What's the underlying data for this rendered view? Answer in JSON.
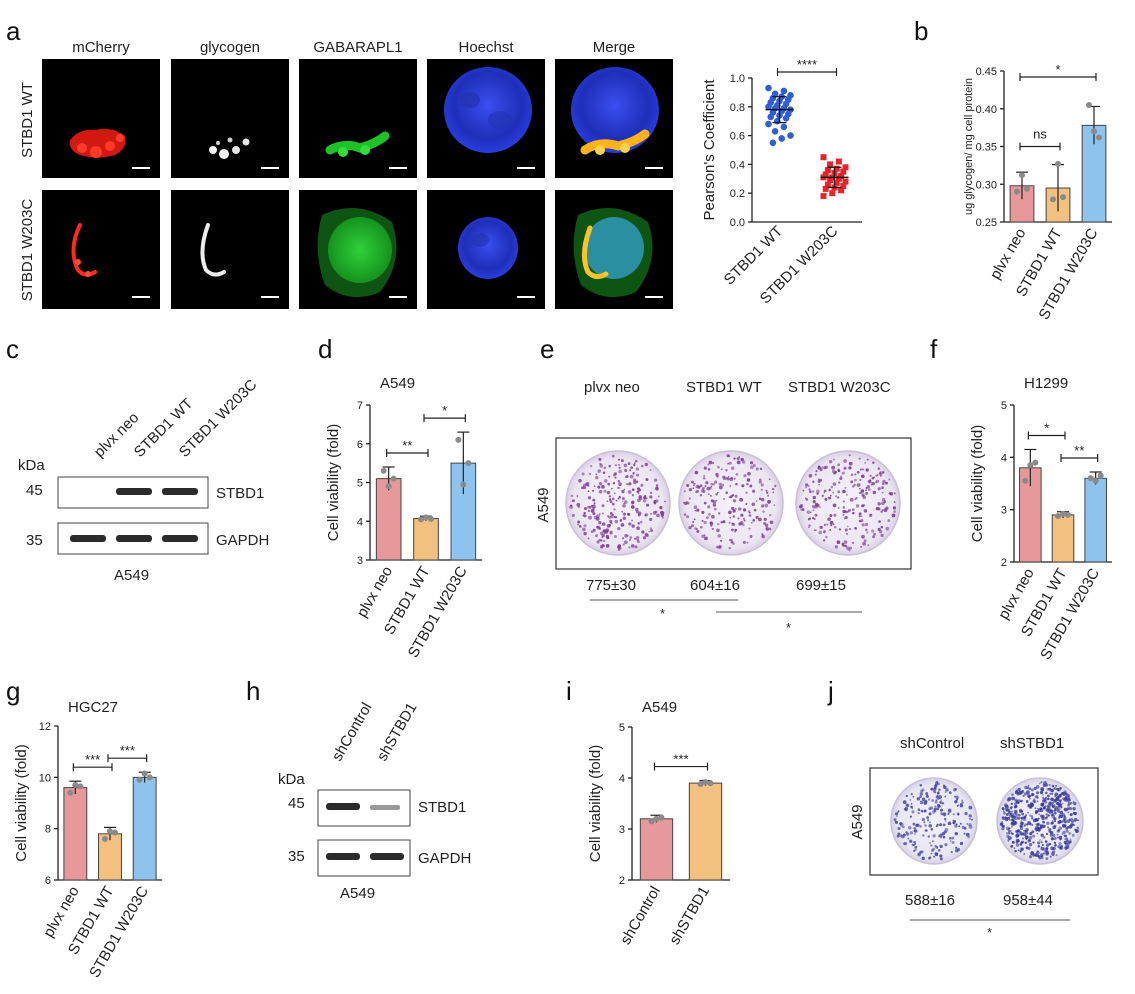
{
  "colors": {
    "neo": "#e7989b",
    "wt": "#f2c07f",
    "w203c": "#8ec3ee",
    "wt_dot": "#2f5ed6",
    "w203c_dot": "#e8232a",
    "red": "#ff2a1f",
    "white": "#e8e8e8",
    "green": "#22c52a",
    "blue": "#2a3de0",
    "plate": "#b089c8"
  },
  "panels": {
    "a": "a",
    "b": "b",
    "c": "c",
    "d": "d",
    "e": "e",
    "f": "f",
    "g": "g",
    "h": "h",
    "i": "i",
    "j": "j"
  },
  "microscopy": {
    "channels": [
      "mCherry",
      "glycogen",
      "GABARAPL1",
      "Hoechst",
      "Merge"
    ],
    "rows": [
      "STBD1 WT",
      "STBD1 W203C"
    ]
  },
  "western_c": {
    "kda": "kDa",
    "lanes": [
      "plvx neo",
      "STBD1 WT",
      "STBD1 W203C"
    ],
    "markers": [
      "45",
      "35"
    ],
    "bands": [
      "STBD1",
      "GAPDH"
    ],
    "cell": "A549"
  },
  "western_h": {
    "kda": "kDa",
    "lanes": [
      "shControl",
      "shSTBD1"
    ],
    "markers": [
      "45",
      "35"
    ],
    "bands": [
      "STBD1",
      "GAPDH"
    ],
    "cell": "A549"
  },
  "colony_e": {
    "cell": "A549",
    "labels": [
      "plvx neo",
      "STBD1 WT",
      "STBD1 W203C"
    ],
    "counts": [
      "775±30",
      "604±16",
      "699±15"
    ],
    "sig": [
      "*",
      "*"
    ]
  },
  "colony_j": {
    "cell": "A549",
    "labels": [
      "shControl",
      "shSTBD1"
    ],
    "counts": [
      "588±16",
      "958±44"
    ],
    "sig": "*"
  },
  "chart_data": [
    {
      "panel": "a",
      "type": "scatter",
      "ylabel": "Pearson's Coefficient",
      "categories": [
        "STBD1 WT",
        "STBD1 W203C"
      ],
      "ylim": [
        0.0,
        1.0
      ],
      "yticks": [
        "0.0",
        "0.2",
        "0.4",
        "0.6",
        "0.8",
        "1.0"
      ],
      "means": [
        0.78,
        0.31
      ],
      "sd": [
        0.09,
        0.07
      ],
      "points": [
        [
          0.93,
          0.91,
          0.89,
          0.88,
          0.87,
          0.86,
          0.85,
          0.84,
          0.83,
          0.82,
          0.81,
          0.8,
          0.79,
          0.79,
          0.78,
          0.77,
          0.76,
          0.75,
          0.74,
          0.73,
          0.72,
          0.7,
          0.68,
          0.66,
          0.63,
          0.6,
          0.58,
          0.55
        ],
        [
          0.45,
          0.42,
          0.4,
          0.38,
          0.37,
          0.36,
          0.35,
          0.34,
          0.33,
          0.32,
          0.31,
          0.31,
          0.3,
          0.29,
          0.28,
          0.27,
          0.26,
          0.25,
          0.24,
          0.23,
          0.22,
          0.2,
          0.18
        ]
      ],
      "significance": "****"
    },
    {
      "panel": "b",
      "type": "bar",
      "ylabel": "ug glycogen/ mg cell protein",
      "categories": [
        "plvx neo",
        "STBD1 WT",
        "STBD1 W203C"
      ],
      "values": [
        0.298,
        0.295,
        0.378
      ],
      "errors": [
        0.018,
        0.031,
        0.025
      ],
      "points": [
        [
          0.29,
          0.312,
          0.294
        ],
        [
          0.28,
          0.327,
          0.283
        ],
        [
          0.405,
          0.37,
          0.362
        ]
      ],
      "ylim": [
        0.25,
        0.45
      ],
      "yticks": [
        "0.25",
        "0.30",
        "0.35",
        "0.40",
        "0.45"
      ],
      "significance": [
        {
          "pair": [
            0,
            1
          ],
          "label": "ns"
        },
        {
          "pair": [
            0,
            2
          ],
          "label": "*"
        }
      ]
    },
    {
      "panel": "d",
      "type": "bar",
      "title": "A549",
      "ylabel": "Cell viability (fold)",
      "categories": [
        "plvx neo",
        "STBD1 WT",
        "STBD1 W203C"
      ],
      "values": [
        5.1,
        4.07,
        5.5
      ],
      "errors": [
        0.3,
        0.06,
        0.8
      ],
      "points": [
        [
          5.3,
          4.9,
          5.1
        ],
        [
          4.05,
          4.1,
          4.06
        ],
        [
          6.1,
          4.95,
          5.5
        ]
      ],
      "ylim": [
        3,
        7
      ],
      "yticks": [
        "3",
        "4",
        "5",
        "6",
        "7"
      ],
      "significance": [
        {
          "pair": [
            0,
            1
          ],
          "label": "**"
        },
        {
          "pair": [
            1,
            2
          ],
          "label": "*"
        }
      ]
    },
    {
      "panel": "f",
      "type": "bar",
      "title": "H1299",
      "ylabel": "Cell viability (fold)",
      "categories": [
        "plvx neo",
        "STBD1 WT",
        "STBD1 W203C"
      ],
      "values": [
        3.8,
        2.9,
        3.6
      ],
      "errors": [
        0.35,
        0.06,
        0.12
      ],
      "points": [
        [
          3.55,
          3.85,
          3.9
        ],
        [
          2.88,
          2.92,
          2.9
        ],
        [
          3.6,
          3.55,
          3.65
        ]
      ],
      "ylim": [
        2,
        5
      ],
      "yticks": [
        "2",
        "3",
        "4",
        "5"
      ],
      "significance": [
        {
          "pair": [
            0,
            1
          ],
          "label": "*"
        },
        {
          "pair": [
            1,
            2
          ],
          "label": "**"
        }
      ]
    },
    {
      "panel": "g",
      "type": "bar",
      "title": "HGC27",
      "ylabel": "Cell viability (fold)",
      "categories": [
        "plvx neo",
        "STBD1 WT",
        "STBD1 W203C"
      ],
      "values": [
        9.6,
        7.8,
        10.0
      ],
      "errors": [
        0.25,
        0.25,
        0.2
      ],
      "points": [
        [
          9.4,
          9.7,
          9.65
        ],
        [
          7.6,
          7.9,
          7.85
        ],
        [
          9.9,
          10.15,
          10.0
        ]
      ],
      "ylim": [
        6,
        12
      ],
      "yticks": [
        "6",
        "8",
        "10",
        "12"
      ],
      "significance": [
        {
          "pair": [
            0,
            1
          ],
          "label": "***"
        },
        {
          "pair": [
            1,
            2
          ],
          "label": "***"
        }
      ]
    },
    {
      "panel": "i",
      "type": "bar",
      "title": "A549",
      "ylabel": "Cell viability (fold)",
      "categories": [
        "shControl",
        "shSTBD1"
      ],
      "values": [
        3.2,
        3.9
      ],
      "errors": [
        0.07,
        0.05
      ],
      "points": [
        [
          3.15,
          3.2,
          3.22
        ],
        [
          3.88,
          3.92,
          3.9
        ]
      ],
      "ylim": [
        2,
        5
      ],
      "yticks": [
        "2",
        "3",
        "4",
        "5"
      ],
      "significance": [
        {
          "pair": [
            0,
            1
          ],
          "label": "***"
        }
      ]
    }
  ]
}
